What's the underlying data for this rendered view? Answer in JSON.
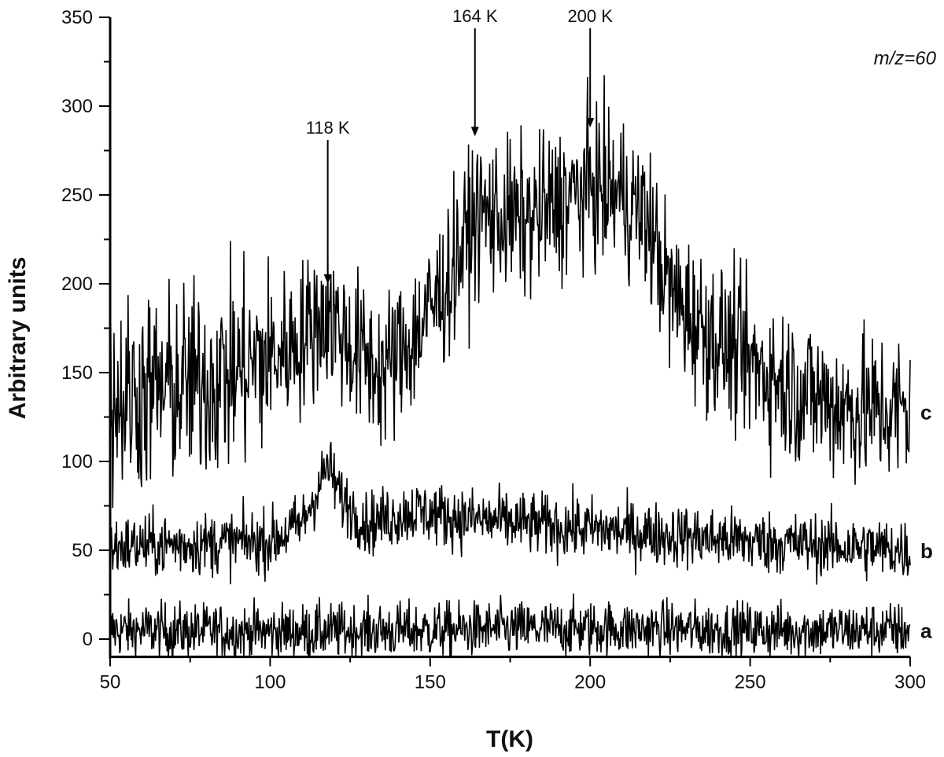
{
  "chart_data": {
    "type": "line",
    "title": "",
    "xlabel": "T(K)",
    "ylabel": "Arbitrary units",
    "xlim": [
      50,
      300
    ],
    "ylim": [
      -10,
      350
    ],
    "xticks": [
      "50",
      "100",
      "150",
      "200",
      "250",
      "300"
    ],
    "yticks": [
      "0",
      "50",
      "100",
      "150",
      "200",
      "250",
      "300",
      "350"
    ],
    "legend_note": "m/z=60",
    "grid": false,
    "series": [
      {
        "name": "a",
        "noise": 8,
        "x": [
          50,
          100,
          150,
          200,
          250,
          300
        ],
        "y": [
          5,
          4,
          5,
          6,
          5,
          5
        ]
      },
      {
        "name": "b",
        "noise": 9,
        "x": [
          50,
          100,
          110,
          115,
          118,
          122,
          130,
          145,
          160,
          200,
          250,
          300
        ],
        "y": [
          52,
          55,
          65,
          85,
          98,
          80,
          65,
          72,
          68,
          62,
          55,
          50
        ]
      },
      {
        "name": "c",
        "noise": 22,
        "x": [
          50,
          80,
          100,
          110,
          118,
          125,
          135,
          145,
          155,
          165,
          180,
          200,
          210,
          218,
          225,
          235,
          250,
          265,
          280,
          300
        ],
        "y": [
          135,
          145,
          158,
          170,
          185,
          165,
          150,
          170,
          200,
          240,
          235,
          255,
          250,
          235,
          195,
          175,
          155,
          140,
          130,
          128
        ]
      }
    ],
    "annotations": [
      {
        "text": "118 K",
        "x": 118,
        "y": 200
      },
      {
        "text": "164 K",
        "x": 164,
        "y": 283
      },
      {
        "text": "200 K",
        "x": 200,
        "y": 288
      }
    ],
    "colors": {
      "line": "#000000"
    }
  }
}
